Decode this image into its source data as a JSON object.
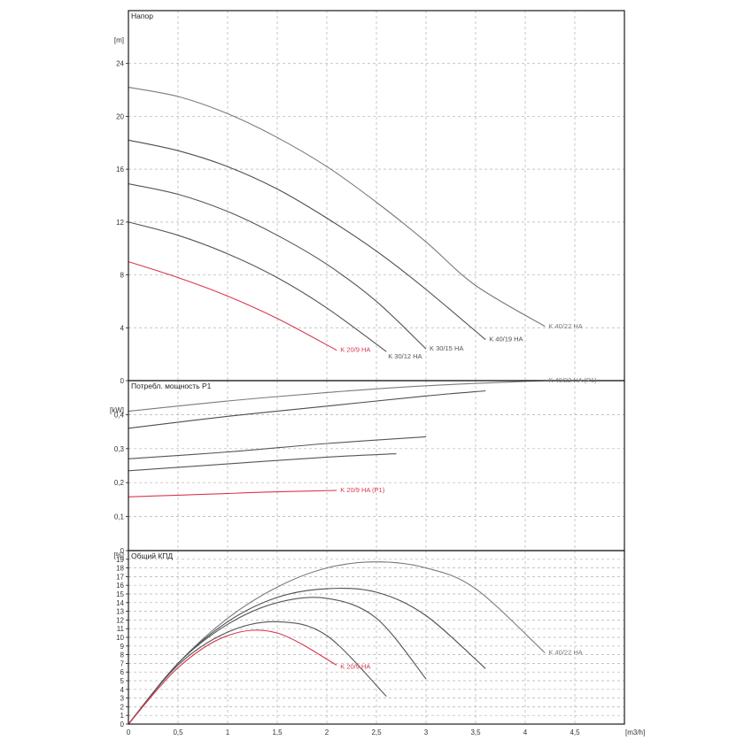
{
  "chart_data": [
    {
      "type": "line",
      "title": "Напор",
      "ylabel": "[m]",
      "xlabel": "",
      "xlim": [
        0,
        5
      ],
      "ylim": [
        0,
        28
      ],
      "xticks": [
        0,
        0.5,
        1,
        1.5,
        2,
        2.5,
        3,
        3.5,
        4,
        4.5
      ],
      "xtick_labels": [
        "0",
        "0,5",
        "1",
        "1,5",
        "2",
        "2,5",
        "3",
        "3,5",
        "4",
        "4,5"
      ],
      "yticks": [
        0,
        4,
        8,
        12,
        16,
        20,
        24
      ],
      "ytick_labels": [
        "0",
        "4",
        "8",
        "12",
        "16",
        "20",
        "24"
      ],
      "grid": true,
      "series": [
        {
          "name": "K 40/22 HA",
          "label": "K 40/22 HA",
          "color": "#7a7a7a",
          "x": [
            0,
            0.5,
            1,
            1.5,
            2,
            2.5,
            3,
            3.5,
            4.2
          ],
          "y": [
            22.2,
            21.5,
            20.2,
            18.4,
            16.2,
            13.5,
            10.5,
            7.2,
            4.1
          ]
        },
        {
          "name": "K 40/19 HA",
          "label": "K 40/19 HA",
          "color": "#4d4d4d",
          "x": [
            0,
            0.5,
            1,
            1.5,
            2,
            2.5,
            3,
            3.6
          ],
          "y": [
            18.2,
            17.4,
            16.2,
            14.5,
            12.3,
            9.8,
            6.9,
            3.1
          ]
        },
        {
          "name": "K 30/15 HA",
          "label": "K 30/15 HA",
          "color": "#555555",
          "x": [
            0,
            0.5,
            1,
            1.5,
            2,
            2.5,
            3
          ],
          "y": [
            14.9,
            14.1,
            12.8,
            11.0,
            8.8,
            6.0,
            2.4
          ]
        },
        {
          "name": "K 30/12 HA",
          "label": "K 30/12 HA",
          "color": "#555555",
          "x": [
            0,
            0.5,
            1,
            1.5,
            2,
            2.6
          ],
          "y": [
            12.0,
            11.0,
            9.6,
            7.8,
            5.5,
            2.2
          ]
        },
        {
          "name": "K 20/9 HA",
          "label": "K 20/9 HA",
          "color": "#d9374f",
          "x": [
            0,
            0.5,
            1,
            1.5,
            2.1
          ],
          "y": [
            9.0,
            7.8,
            6.4,
            4.7,
            2.3
          ]
        }
      ]
    },
    {
      "type": "line",
      "title": "Потребл. мощность P1",
      "ylabel": "[kW]",
      "xlabel": "",
      "xlim": [
        0,
        5
      ],
      "ylim": [
        0,
        0.5
      ],
      "xticks": [
        0,
        0.5,
        1,
        1.5,
        2,
        2.5,
        3,
        3.5,
        4,
        4.5
      ],
      "yticks": [
        0,
        0.1,
        0.2,
        0.3,
        0.4
      ],
      "ytick_labels": [
        "0",
        "0,1",
        "0,2",
        "0,3",
        "0,4"
      ],
      "grid": true,
      "series": [
        {
          "name": "K 40/22 HA (P1)",
          "label": "K 40/22 HA (P1)",
          "color": "#7a7a7a",
          "x": [
            0,
            1,
            2,
            3,
            4.2
          ],
          "y": [
            0.41,
            0.44,
            0.465,
            0.485,
            0.5
          ]
        },
        {
          "name": "",
          "label": "",
          "color": "#4d4d4d",
          "x": [
            0,
            1,
            2,
            3,
            3.6
          ],
          "y": [
            0.36,
            0.395,
            0.425,
            0.455,
            0.47
          ]
        },
        {
          "name": "",
          "label": "",
          "color": "#555555",
          "x": [
            0,
            1,
            2,
            3
          ],
          "y": [
            0.27,
            0.29,
            0.315,
            0.335
          ]
        },
        {
          "name": "",
          "label": "",
          "color": "#555555",
          "x": [
            0,
            1,
            2,
            2.7
          ],
          "y": [
            0.235,
            0.255,
            0.275,
            0.285
          ]
        },
        {
          "name": "K 20/9 HA (P1)",
          "label": "K 20/9 HA (P1)",
          "color": "#d9374f",
          "x": [
            0,
            0.5,
            1,
            1.5,
            2.1
          ],
          "y": [
            0.158,
            0.163,
            0.168,
            0.173,
            0.177
          ]
        }
      ]
    },
    {
      "type": "line",
      "title": "Общий КПД",
      "ylabel": "[%]",
      "xlabel": "[m3/h]",
      "xlim": [
        0,
        5
      ],
      "ylim": [
        0,
        20
      ],
      "xticks": [
        0,
        0.5,
        1,
        1.5,
        2,
        2.5,
        3,
        3.5,
        4,
        4.5
      ],
      "xtick_labels": [
        "0",
        "0,5",
        "1",
        "1,5",
        "2",
        "2,5",
        "3",
        "3,5",
        "4",
        "4,5"
      ],
      "yticks": [
        0,
        1,
        2,
        3,
        4,
        5,
        6,
        7,
        8,
        9,
        10,
        11,
        12,
        13,
        14,
        15,
        16,
        17,
        18,
        19
      ],
      "ytick_labels": [
        "0",
        "1",
        "2",
        "3",
        "4",
        "5",
        "6",
        "7",
        "8",
        "9",
        "10",
        "11",
        "12",
        "13",
        "14",
        "15",
        "16",
        "17",
        "18",
        "19"
      ],
      "grid": true,
      "series": [
        {
          "name": "K 40/22 HA",
          "label": "K 40/22 HA",
          "color": "#7a7a7a",
          "x": [
            0,
            0.5,
            1,
            1.5,
            2,
            2.5,
            3,
            3.5,
            4.2
          ],
          "y": [
            0,
            7.0,
            12.2,
            15.8,
            18.0,
            18.7,
            18.0,
            15.6,
            8.2
          ]
        },
        {
          "name": "K 40/19 HA",
          "label": "",
          "color": "#4d4d4d",
          "x": [
            0,
            0.5,
            1,
            1.5,
            2,
            2.5,
            3,
            3.6
          ],
          "y": [
            0,
            7.0,
            11.8,
            14.6,
            15.6,
            15.2,
            12.5,
            6.4
          ]
        },
        {
          "name": "K 30/15 HA",
          "label": "",
          "color": "#555555",
          "x": [
            0,
            0.5,
            1,
            1.5,
            2,
            2.5,
            3
          ],
          "y": [
            0,
            7.0,
            11.5,
            14.0,
            14.5,
            12.2,
            5.2
          ]
        },
        {
          "name": "K 30/12 HA",
          "label": "",
          "color": "#555555",
          "x": [
            0,
            0.5,
            1,
            1.5,
            2,
            2.6
          ],
          "y": [
            0,
            6.8,
            10.6,
            11.8,
            10.2,
            3.2
          ]
        },
        {
          "name": "K 20/9 HA",
          "label": "K 20/9 HA",
          "color": "#d9374f",
          "x": [
            0,
            0.5,
            1,
            1.5,
            2.1
          ],
          "y": [
            0,
            6.5,
            10.2,
            10.5,
            6.8
          ]
        }
      ]
    }
  ]
}
